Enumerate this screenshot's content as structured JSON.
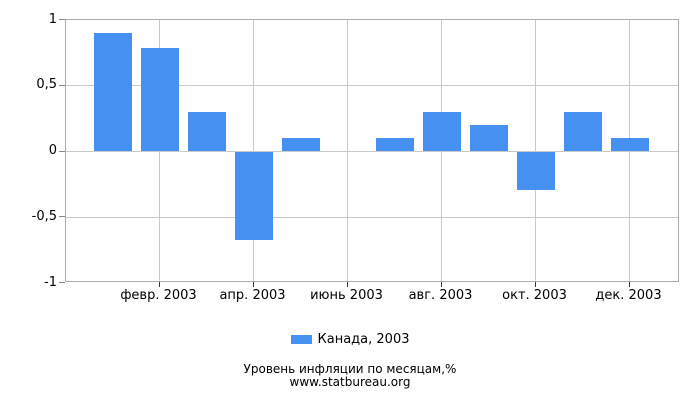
{
  "chart_data": {
    "type": "bar",
    "series_name": "Канада, 2003",
    "values": [
      0.9,
      0.79,
      0.3,
      -0.67,
      0.1,
      0,
      0.1,
      0.3,
      0.2,
      -0.29,
      0.3,
      0.1
    ],
    "x_ticks": [
      {
        "index": 1,
        "label": "февр. 2003"
      },
      {
        "index": 3,
        "label": "апр. 2003"
      },
      {
        "index": 5,
        "label": "июнь 2003"
      },
      {
        "index": 7,
        "label": "авг. 2003"
      },
      {
        "index": 9,
        "label": "окт. 2003"
      },
      {
        "index": 11,
        "label": "дек. 2003"
      }
    ],
    "y_ticks": [
      {
        "value": 1,
        "label": "1"
      },
      {
        "value": 0.5,
        "label": "0,5"
      },
      {
        "value": 0,
        "label": "0"
      },
      {
        "value": -0.5,
        "label": "-0,5"
      },
      {
        "value": -1,
        "label": "-1"
      }
    ],
    "ylim": [
      -1,
      1
    ],
    "grid": true,
    "legend_position": "bottom-center",
    "legend_label": "Канада, 2003",
    "footer_line1": "Уровень инфляции по месяцам,%",
    "footer_line2": "www.statbureau.org",
    "colors": {
      "bar": "#4590F0",
      "grid": "#C9C9C9",
      "border": "#ABABAB",
      "text": "#000000"
    }
  }
}
